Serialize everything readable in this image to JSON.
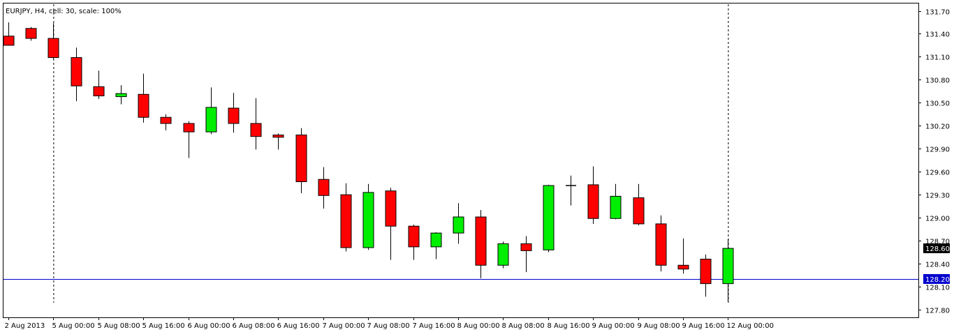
{
  "window": {
    "title": "EURJPY, H4, cell: 30, scale: 100%"
  },
  "colors": {
    "background": "#ffffff",
    "frame": "#000000",
    "bull": "#00ee00",
    "bear": "#ff0000",
    "wick": "#000000",
    "hline": "#0000cc",
    "current_price_badge": "#000000",
    "hline_badge": "#0000cc"
  },
  "chart_data": {
    "type": "candlestick",
    "symbol": "EURJPY",
    "timeframe": "H4",
    "y_ticks": [
      127.8,
      128.1,
      128.4,
      128.7,
      129.0,
      129.3,
      129.6,
      129.9,
      130.2,
      130.5,
      130.8,
      131.1,
      131.4,
      131.7
    ],
    "y_tick_labels": [
      "127.80",
      "128.10",
      "128.40",
      "128.70",
      "129.00",
      "129.30",
      "129.60",
      "129.90",
      "130.20",
      "130.50",
      "130.80",
      "131.10",
      "131.40",
      "131.70"
    ],
    "ylim": [
      127.7,
      131.76
    ],
    "x_labels": [
      {
        "index": 0,
        "text": "2 Aug 2013"
      },
      {
        "index": 2,
        "text": "5 Aug 00:00"
      },
      {
        "index": 4,
        "text": "5 Aug 08:00"
      },
      {
        "index": 6,
        "text": "5 Aug 16:00"
      },
      {
        "index": 8,
        "text": "6 Aug 00:00"
      },
      {
        "index": 10,
        "text": "6 Aug 08:00"
      },
      {
        "index": 12,
        "text": "6 Aug 16:00"
      },
      {
        "index": 14,
        "text": "7 Aug 00:00"
      },
      {
        "index": 16,
        "text": "7 Aug 08:00"
      },
      {
        "index": 18,
        "text": "7 Aug 16:00"
      },
      {
        "index": 20,
        "text": "8 Aug 00:00"
      },
      {
        "index": 22,
        "text": "8 Aug 08:00"
      },
      {
        "index": 24,
        "text": "8 Aug 16:00"
      },
      {
        "index": 26,
        "text": "9 Aug 00:00"
      },
      {
        "index": 28,
        "text": "9 Aug 08:00"
      },
      {
        "index": 30,
        "text": "9 Aug 16:00"
      },
      {
        "index": 32,
        "text": "12 Aug 00:00"
      }
    ],
    "candles": [
      {
        "o": 131.37,
        "h": 131.55,
        "l": 131.25,
        "c": 131.25
      },
      {
        "o": 131.47,
        "h": 131.49,
        "l": 131.31,
        "c": 131.34
      },
      {
        "o": 131.34,
        "h": 131.54,
        "l": 131.07,
        "c": 131.09
      },
      {
        "o": 131.09,
        "h": 131.22,
        "l": 130.52,
        "c": 130.72
      },
      {
        "o": 130.71,
        "h": 130.92,
        "l": 130.55,
        "c": 130.59
      },
      {
        "o": 130.58,
        "h": 130.73,
        "l": 130.48,
        "c": 130.62
      },
      {
        "o": 130.61,
        "h": 130.88,
        "l": 130.24,
        "c": 130.31
      },
      {
        "o": 130.31,
        "h": 130.35,
        "l": 130.14,
        "c": 130.23
      },
      {
        "o": 130.23,
        "h": 130.26,
        "l": 129.78,
        "c": 130.12
      },
      {
        "o": 130.12,
        "h": 130.7,
        "l": 130.09,
        "c": 130.44
      },
      {
        "o": 130.43,
        "h": 130.63,
        "l": 130.11,
        "c": 130.23
      },
      {
        "o": 130.23,
        "h": 130.56,
        "l": 129.89,
        "c": 130.06
      },
      {
        "o": 130.08,
        "h": 130.1,
        "l": 129.89,
        "c": 130.05
      },
      {
        "o": 130.08,
        "h": 130.17,
        "l": 129.32,
        "c": 129.47
      },
      {
        "o": 129.5,
        "h": 129.66,
        "l": 129.12,
        "c": 129.29
      },
      {
        "o": 129.3,
        "h": 129.45,
        "l": 128.56,
        "c": 128.61
      },
      {
        "o": 128.61,
        "h": 129.44,
        "l": 128.58,
        "c": 129.33
      },
      {
        "o": 129.35,
        "h": 129.39,
        "l": 128.45,
        "c": 128.89
      },
      {
        "o": 128.89,
        "h": 128.91,
        "l": 128.45,
        "c": 128.62
      },
      {
        "o": 128.62,
        "h": 128.81,
        "l": 128.46,
        "c": 128.8
      },
      {
        "o": 128.8,
        "h": 129.19,
        "l": 128.66,
        "c": 129.01
      },
      {
        "o": 129.01,
        "h": 129.1,
        "l": 128.21,
        "c": 128.38
      },
      {
        "o": 128.38,
        "h": 128.69,
        "l": 128.34,
        "c": 128.66
      },
      {
        "o": 128.66,
        "h": 128.76,
        "l": 128.29,
        "c": 128.57
      },
      {
        "o": 128.58,
        "h": 129.43,
        "l": 128.55,
        "c": 129.42
      },
      {
        "o": 129.42,
        "h": 129.55,
        "l": 129.16,
        "c": 129.42
      },
      {
        "o": 129.43,
        "h": 129.67,
        "l": 128.92,
        "c": 128.99
      },
      {
        "o": 128.99,
        "h": 129.44,
        "l": 128.98,
        "c": 129.28
      },
      {
        "o": 129.26,
        "h": 129.44,
        "l": 128.9,
        "c": 128.92
      },
      {
        "o": 128.92,
        "h": 129.03,
        "l": 128.3,
        "c": 128.38
      },
      {
        "o": 128.38,
        "h": 128.73,
        "l": 128.27,
        "c": 128.33
      },
      {
        "o": 128.46,
        "h": 128.52,
        "l": 127.97,
        "c": 128.14
      },
      {
        "o": 128.14,
        "h": 128.72,
        "l": 127.9,
        "c": 128.6
      }
    ],
    "horizontal_line": {
      "price": 128.2,
      "label": "128.20"
    },
    "current_price": {
      "price": 128.6,
      "label": "128.60"
    },
    "period_separators_at_index": [
      2,
      32
    ]
  }
}
